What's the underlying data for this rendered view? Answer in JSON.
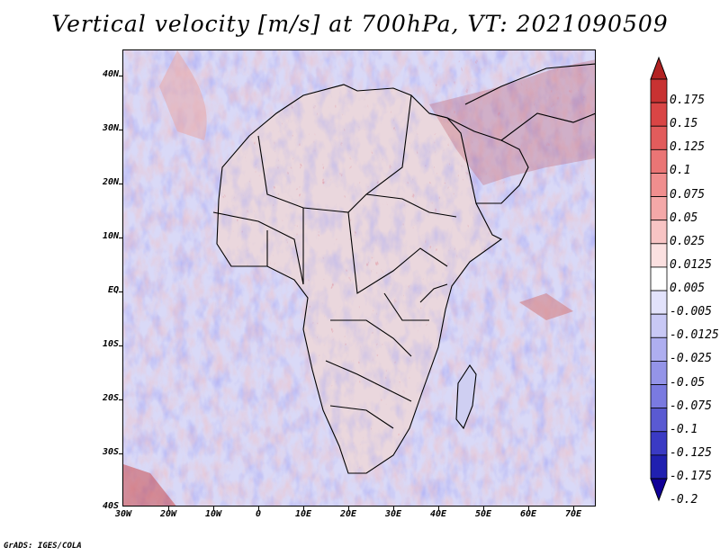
{
  "title": "Vertical velocity [m/s] at 700hPa, VT: 2021090509",
  "footer": "GrADS: IGES/COLA",
  "lat_labels": [
    "40N",
    "30N",
    "20N",
    "10N",
    "EQ",
    "10S",
    "20S",
    "30S",
    "40S"
  ],
  "lon_labels": [
    "30W",
    "20W",
    "10W",
    "0",
    "10E",
    "20E",
    "30E",
    "40E",
    "50E",
    "60E",
    "70E"
  ],
  "colorbar": {
    "labels": [
      "0.175",
      "0.15",
      "0.125",
      "0.1",
      "0.075",
      "0.05",
      "0.025",
      "0.0125",
      "0.005",
      "-0.005",
      "-0.0125",
      "-0.025",
      "-0.05",
      "-0.075",
      "-0.1",
      "-0.125",
      "-0.175",
      "-0.2"
    ],
    "colors": [
      "#b22222",
      "#c83232",
      "#d94545",
      "#e25c5c",
      "#ea7575",
      "#f08e8e",
      "#f4a8a8",
      "#f8c4c4",
      "#fbe0e0",
      "#ffffff",
      "#e2e2fb",
      "#c8c8f5",
      "#aeaef0",
      "#9494e8",
      "#7a7ae0",
      "#5a5ad2",
      "#3a3ac4",
      "#2020b0",
      "#100098"
    ]
  },
  "colors": {
    "ocean_base": "#d9d9f7",
    "land_base": "#e7d6dc",
    "border": "#000000"
  }
}
